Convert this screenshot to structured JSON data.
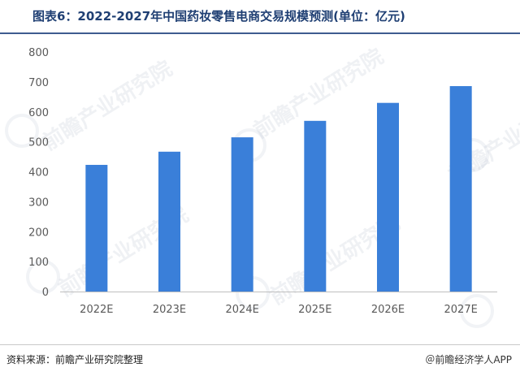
{
  "header": {
    "title": "图表6：2022-2027年中国药妆零售电商交易规模预测(单位：亿元)"
  },
  "footer": {
    "source": "资料来源：前瞻产业研究院整理",
    "credit": "＠前瞻经济学人APP"
  },
  "watermark": {
    "text": "前瞻产业研究院"
  },
  "colors": {
    "bar": "#3a7fd9",
    "title": "#1f3f73",
    "axis": "#bfbfbf",
    "tick_text": "#595959"
  },
  "chart_data": {
    "type": "bar",
    "title": "图表6：2022-2027年中国药妆零售电商交易规模预测(单位：亿元)",
    "categories": [
      "2022E",
      "2023E",
      "2024E",
      "2025E",
      "2026E",
      "2027E"
    ],
    "values": [
      423,
      467,
      515,
      570,
      630,
      686
    ],
    "ylim": [
      0,
      800
    ],
    "yticks": [
      0,
      100,
      200,
      300,
      400,
      500,
      600,
      700,
      800
    ],
    "xlabel": "",
    "ylabel": "",
    "grid": false,
    "legend": "none"
  }
}
